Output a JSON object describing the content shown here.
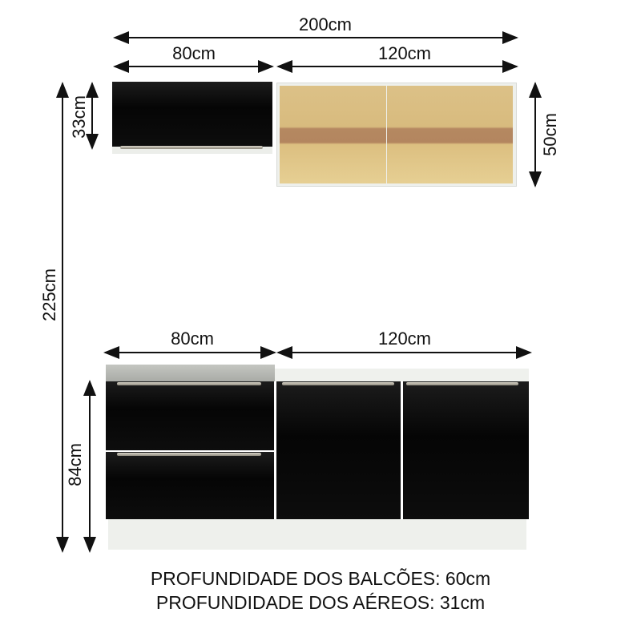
{
  "dimensions": {
    "total_width": "200cm",
    "upper_left_width": "80cm",
    "upper_right_width": "120cm",
    "upper_left_height": "33cm",
    "upper_right_height": "50cm",
    "total_height": "225cm",
    "lower_left_width": "80cm",
    "lower_right_width": "120cm",
    "lower_height": "84cm"
  },
  "notes": {
    "counter_depth": "PROFUNDIDADE DOS BALCÕES: 60cm",
    "wall_depth": "PROFUNDIDADE DOS AÉREOS: 31cm"
  },
  "colors": {
    "cabinet_front": "#0a0a0a",
    "glass": "#d9b877",
    "countertop": "#b9bbb6",
    "body": "#eef0ec"
  }
}
